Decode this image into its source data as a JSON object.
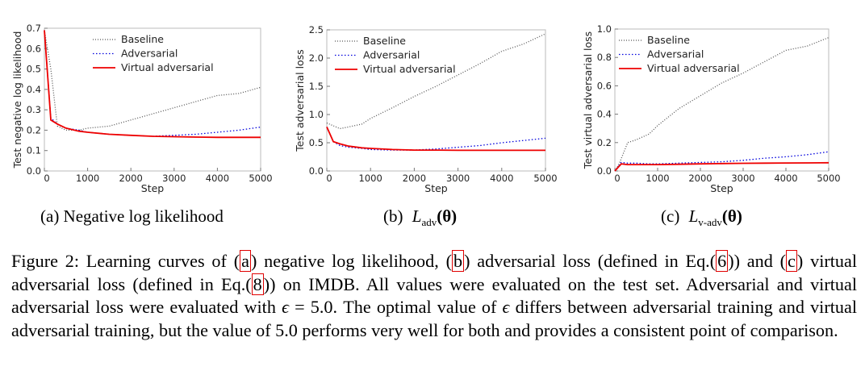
{
  "chart_data": [
    {
      "type": "line",
      "subcaption": "(a)  Negative log likelihood",
      "xlabel": "Step",
      "ylabel": "Test negative log likelihood",
      "xlim": [
        0,
        5000
      ],
      "ylim": [
        0,
        0.7
      ],
      "xticks": [
        0,
        1000,
        2000,
        3000,
        4000,
        5000
      ],
      "xtick_labels": [
        "0",
        "1000",
        "2000",
        "3000",
        "4000",
        "5000"
      ],
      "yticks": [
        0,
        0.1,
        0.2,
        0.3,
        0.4,
        0.5,
        0.6,
        0.7
      ],
      "ytick_labels": [
        "0.0",
        "0.1",
        "0.2",
        "0.3",
        "0.4",
        "0.5",
        "0.6",
        "0.7"
      ],
      "grid": false,
      "legend_position": "top-right",
      "series": [
        {
          "name": "Baseline",
          "color": "#555555",
          "style": "dotted",
          "x": [
            0,
            150,
            300,
            500,
            800,
            1000,
            1500,
            2000,
            2500,
            3000,
            3500,
            4000,
            4500,
            5000
          ],
          "y": [
            0.69,
            0.5,
            0.22,
            0.2,
            0.2,
            0.21,
            0.22,
            0.25,
            0.28,
            0.31,
            0.34,
            0.37,
            0.38,
            0.41
          ]
        },
        {
          "name": "Adversarial",
          "color": "#0000dd",
          "style": "dotted",
          "x": [
            0,
            150,
            300,
            500,
            800,
            1000,
            1500,
            2000,
            2500,
            3000,
            3500,
            4000,
            4500,
            5000
          ],
          "y": [
            0.69,
            0.26,
            0.23,
            0.21,
            0.2,
            0.19,
            0.18,
            0.175,
            0.17,
            0.175,
            0.18,
            0.19,
            0.2,
            0.215
          ]
        },
        {
          "name": "Virtual adversarial",
          "color": "#ee0000",
          "style": "solid",
          "x": [
            0,
            150,
            300,
            500,
            800,
            1000,
            1500,
            2000,
            2500,
            3000,
            3500,
            4000,
            4500,
            5000
          ],
          "y": [
            0.69,
            0.25,
            0.23,
            0.21,
            0.195,
            0.19,
            0.18,
            0.175,
            0.17,
            0.168,
            0.166,
            0.165,
            0.165,
            0.165
          ]
        }
      ]
    },
    {
      "type": "line",
      "subcaption": "(b)",
      "subcaption_math": "L",
      "subcaption_sub": "adv",
      "subcaption_arg": "(θ)",
      "xlabel": "Step",
      "ylabel": "Test adversarial loss",
      "xlim": [
        0,
        5000
      ],
      "ylim": [
        0,
        2.5
      ],
      "xticks": [
        0,
        1000,
        2000,
        3000,
        4000,
        5000
      ],
      "xtick_labels": [
        "0",
        "1000",
        "2000",
        "3000",
        "4000",
        "5000"
      ],
      "yticks": [
        0,
        0.5,
        1.0,
        1.5,
        2.0,
        2.5
      ],
      "ytick_labels": [
        "0.0",
        "0.5",
        "1.0",
        "1.5",
        "2.0",
        "2.5"
      ],
      "grid": false,
      "legend_position": "top-right",
      "series": [
        {
          "name": "Baseline",
          "color": "#555555",
          "style": "dotted",
          "x": [
            0,
            300,
            500,
            800,
            1000,
            1500,
            2000,
            2500,
            3000,
            3500,
            4000,
            4500,
            5000
          ],
          "y": [
            0.85,
            0.75,
            0.78,
            0.83,
            0.93,
            1.12,
            1.32,
            1.5,
            1.7,
            1.9,
            2.12,
            2.25,
            2.43
          ]
        },
        {
          "name": "Adversarial",
          "color": "#0000dd",
          "style": "dotted",
          "x": [
            0,
            150,
            300,
            500,
            800,
            1000,
            1500,
            2000,
            2500,
            3000,
            3500,
            4000,
            4500,
            5000
          ],
          "y": [
            0.78,
            0.52,
            0.45,
            0.42,
            0.4,
            0.38,
            0.37,
            0.37,
            0.39,
            0.42,
            0.45,
            0.5,
            0.54,
            0.58
          ]
        },
        {
          "name": "Virtual adversarial",
          "color": "#ee0000",
          "style": "solid",
          "x": [
            0,
            150,
            300,
            500,
            800,
            1000,
            1500,
            2000,
            2500,
            3000,
            3500,
            4000,
            4500,
            5000
          ],
          "y": [
            0.78,
            0.52,
            0.48,
            0.44,
            0.41,
            0.4,
            0.38,
            0.37,
            0.37,
            0.365,
            0.365,
            0.365,
            0.365,
            0.365
          ]
        }
      ]
    },
    {
      "type": "line",
      "subcaption": "(c)",
      "subcaption_math": "L",
      "subcaption_sub": "v-adv",
      "subcaption_arg": "(θ)",
      "xlabel": "Step",
      "ylabel": "Test virtual adversarial loss",
      "xlim": [
        0,
        5000
      ],
      "ylim": [
        0,
        1.0
      ],
      "xticks": [
        0,
        1000,
        2000,
        3000,
        4000,
        5000
      ],
      "xtick_labels": [
        "0",
        "1000",
        "2000",
        "3000",
        "4000",
        "5000"
      ],
      "yticks": [
        0,
        0.2,
        0.4,
        0.6,
        0.8,
        1.0
      ],
      "ytick_labels": [
        "0.0",
        "0.2",
        "0.4",
        "0.6",
        "0.8",
        "1.0"
      ],
      "grid": false,
      "legend_position": "top-right",
      "series": [
        {
          "name": "Baseline",
          "color": "#555555",
          "style": "dotted",
          "x": [
            0,
            100,
            300,
            500,
            800,
            1000,
            1500,
            2000,
            2500,
            3000,
            3500,
            4000,
            4500,
            5000
          ],
          "y": [
            0.0,
            0.05,
            0.2,
            0.22,
            0.26,
            0.32,
            0.44,
            0.53,
            0.62,
            0.69,
            0.77,
            0.85,
            0.88,
            0.94
          ]
        },
        {
          "name": "Adversarial",
          "color": "#0000dd",
          "style": "dotted",
          "x": [
            0,
            150,
            300,
            500,
            800,
            1000,
            1500,
            2000,
            2500,
            3000,
            3500,
            4000,
            4500,
            5000
          ],
          "y": [
            0.0,
            0.06,
            0.055,
            0.055,
            0.05,
            0.05,
            0.055,
            0.06,
            0.065,
            0.075,
            0.09,
            0.1,
            0.115,
            0.135
          ]
        },
        {
          "name": "Virtual adversarial",
          "color": "#ee0000",
          "style": "solid",
          "x": [
            0,
            150,
            300,
            500,
            800,
            1000,
            1500,
            2000,
            2500,
            3000,
            3500,
            4000,
            4500,
            5000
          ],
          "y": [
            0.0,
            0.05,
            0.045,
            0.045,
            0.045,
            0.045,
            0.047,
            0.05,
            0.052,
            0.054,
            0.055,
            0.056,
            0.057,
            0.058
          ]
        }
      ]
    }
  ],
  "caption": {
    "part1": "Figure 2:  Learning curves of  (",
    "ref_a": "a",
    "part2": ") negative log likelihood,  (",
    "ref_b": "b",
    "part3": ") adversarial loss (defined in Eq.(",
    "ref_eq6": "6",
    "part4": ")) and (",
    "ref_c": "c",
    "part5": ") virtual adversarial loss (defined in Eq.(",
    "ref_eq8": "8",
    "part6": ")) on IMDB. All values were evaluated on the test set. Adversarial and virtual adversarial loss were evaluated with ",
    "epsilon": "ϵ",
    "part7": " = 5.0. The optimal value of ",
    "part8": " differs between adversarial training and virtual adversarial training, but the value of 5.0 performs very well for both and provides a consistent point of comparison."
  }
}
